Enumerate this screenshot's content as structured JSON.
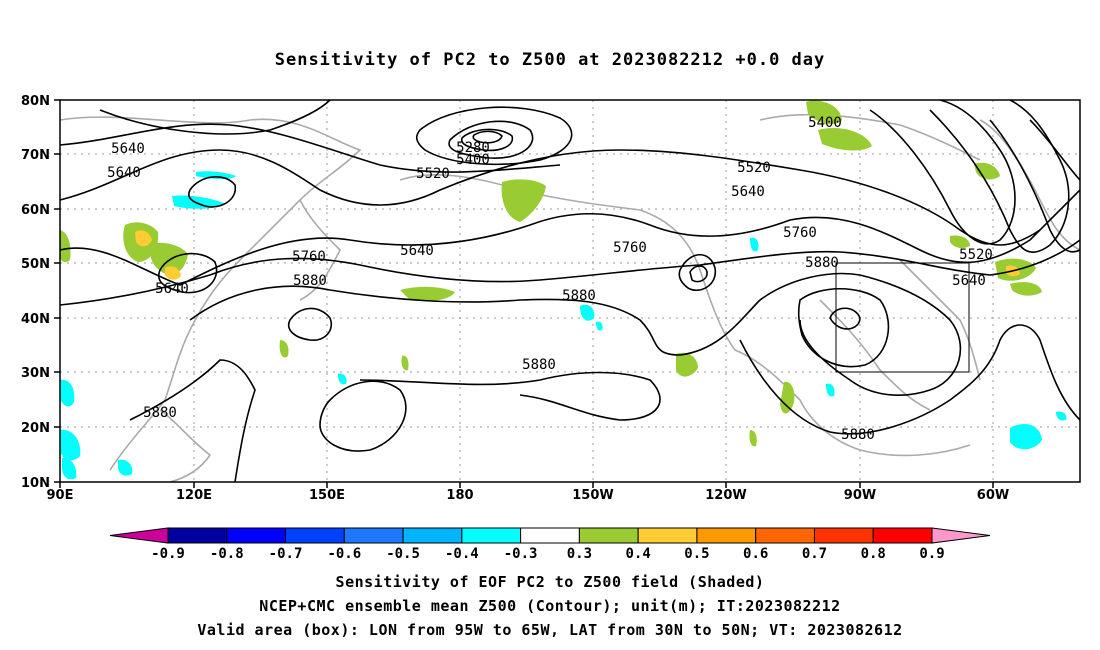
{
  "title": "Sensitivity of PC2 to Z500 at 2023082212 +0.0 day",
  "map": {
    "lat_labels": [
      "80N",
      "70N",
      "60N",
      "50N",
      "40N",
      "30N",
      "20N",
      "10N"
    ],
    "lon_labels": [
      "90E",
      "120E",
      "150E",
      "180",
      "150W",
      "120W",
      "90W",
      "60W"
    ],
    "contour_labels": [
      "5640",
      "5640",
      "5640",
      "5640",
      "5760",
      "5880",
      "5880",
      "5880",
      "5880",
      "5280",
      "5400",
      "5520",
      "5400",
      "5520",
      "5640",
      "5760",
      "5760",
      "5880",
      "5520",
      "5640",
      "5880"
    ],
    "box": {
      "lon_from": "95W",
      "lon_to": "65W",
      "lat_from": "30N",
      "lat_to": "50N"
    }
  },
  "colorbar": {
    "labels": [
      "-0.9",
      "-0.8",
      "-0.7",
      "-0.6",
      "-0.5",
      "-0.4",
      "-0.3",
      "0.3",
      "0.4",
      "0.5",
      "0.6",
      "0.7",
      "0.8",
      "0.9"
    ],
    "colors": [
      "#cc0099",
      "#0000a0",
      "#0000ff",
      "#0040ff",
      "#1e78ff",
      "#00b4ff",
      "#00ffff",
      "#ffffff",
      "#99cc33",
      "#ffcc33",
      "#ff9900",
      "#ff6600",
      "#ff3300",
      "#ff0000",
      "#ff99cc"
    ]
  },
  "footer": {
    "line1": "Sensitivity of EOF PC2 to Z500 field (Shaded)",
    "line2": "NCEP+CMC ensemble mean Z500 (Contour); unit(m); IT:2023082212",
    "line3": "Valid area (box): LON from 95W to 65W, LAT from 30N to 50N; VT: 2023082612"
  }
}
